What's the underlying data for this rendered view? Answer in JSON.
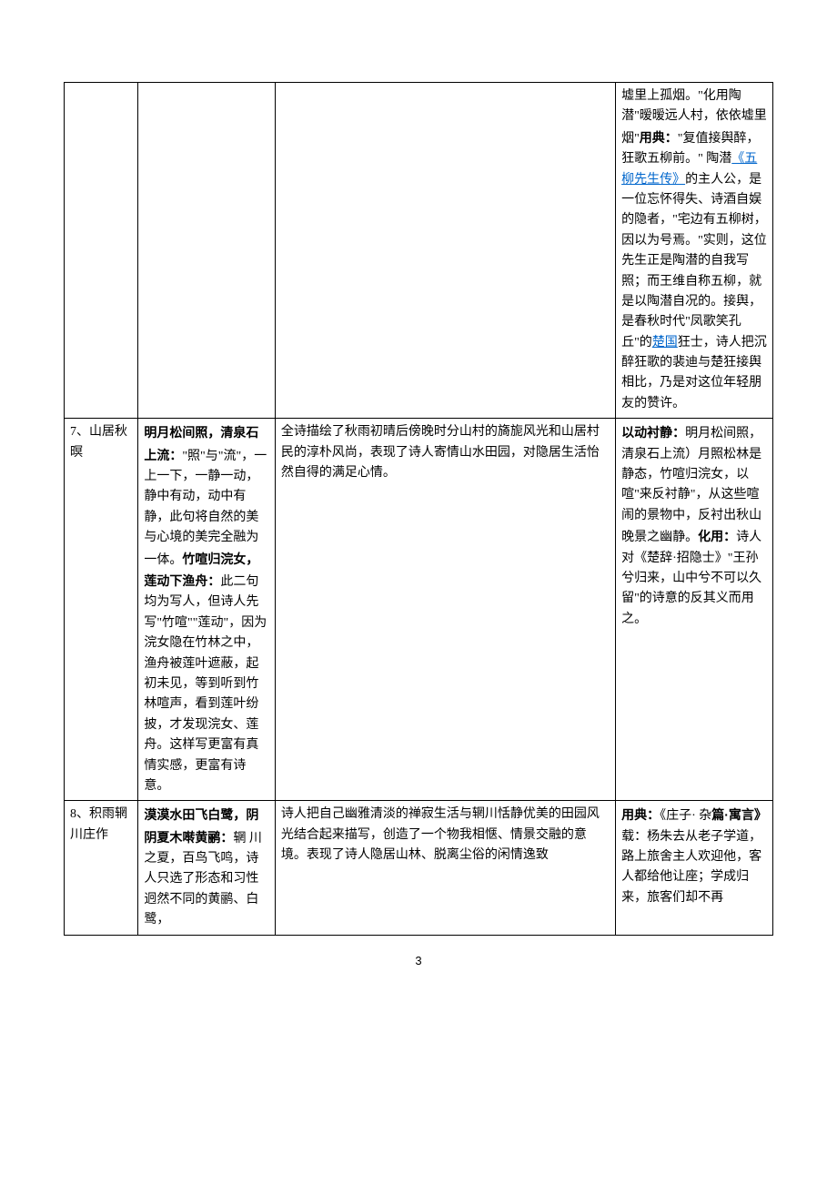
{
  "rows": [
    {
      "c1": "",
      "c2": "",
      "c3": "",
      "c4_parts": [
        {
          "t": "墟里上孤烟。\"化用陶潜\"暧暧远人村，依依墟里烟\""
        },
        {
          "t": "用典：",
          "bold": true
        },
        {
          "t": "\"复值接舆醉，狂歌五柳前。\" 陶潜"
        },
        {
          "t": "《五柳先生传》",
          "link": true
        },
        {
          "t": "的主人公，是一位忘怀得失、诗酒自娱的隐者，\"宅边有五柳树，因以为号焉。\"实则，这位先生正是陶潜的自我写照；而王维自称五柳，就是以陶潜自况的。接舆，是春秋时代\"凤歌笑孔丘\"的"
        },
        {
          "t": "楚国",
          "link": true
        },
        {
          "t": "狂士，诗人把沉醉狂歌的裴迪与楚狂接舆相比，乃是对这位年轻朋友的赞许。"
        }
      ]
    },
    {
      "c1": "7、山居秋暝",
      "c2_parts": [
        {
          "t": "明月松间照，清泉石上流：",
          "bold": true
        },
        {
          "t": "\"照\"与\"流\"，一上一下，一静一动，静中有动，动中有静，此句将自然的美与心境的美完全融为一体。"
        },
        {
          "t": "竹喧归浣女，莲动下渔舟：",
          "bold": true
        },
        {
          "t": "此二句均为写人，但诗人先写\"竹喧\"\"莲动\"，因为浣女隐在竹林之中，渔舟被莲叶遮蔽，起初未见，等到听到竹林喧声，看到莲叶纷披，才发现浣女、莲舟。这样写更富有真情实感，更富有诗意。"
        }
      ],
      "c3": "全诗描绘了秋雨初晴后傍晚时分山村的旖旎风光和山居村民的淳朴风尚，表现了诗人寄情山水田园，对隐居生活怡然自得的满足心情。",
      "c4_parts": [
        {
          "t": "以动衬静：",
          "bold": true
        },
        {
          "t": "明月松间照，清泉石上流）月照松林是静态，竹喧归浣女，以喧\"来反衬静\"，从这些喧闹的景物中，反衬出秋山晚景之幽静。"
        },
        {
          "t": "化用：",
          "bold": true
        },
        {
          "t": "诗人对《楚辞·招隐士》\"王孙兮归来，山中兮不可以久留\"的诗意的反其义而用之。"
        }
      ]
    },
    {
      "c1": "8、积雨辋川庄作",
      "c2_parts": [
        {
          "t": "漠漠水田飞白鹭，阴阴夏木啭黄鹂：",
          "bold": true
        },
        {
          "t": "辋 川之夏，百鸟飞鸣，诗人只选了形态和习性迥然不同的黄鹂、白鹭，"
        }
      ],
      "c3": "诗人把自己幽雅清淡的禅寂生活与辋川恬静优美的田园风光结合起来描写，创造了一个物我相惬、情景交融的意境。表现了诗人隐居山林、脱离尘俗的闲情逸致",
      "c4_parts": [
        {
          "t": "用典：",
          "bold": true
        },
        {
          "t": "《庄子· 杂"
        },
        {
          "t": "篇·寓言》",
          "bold": true
        },
        {
          "t": "载：杨朱去从老子学道，路上旅舍主人欢迎他，客人都给他让座；学成归来，旅客们却不再"
        }
      ]
    }
  ],
  "pageNumber": "3"
}
